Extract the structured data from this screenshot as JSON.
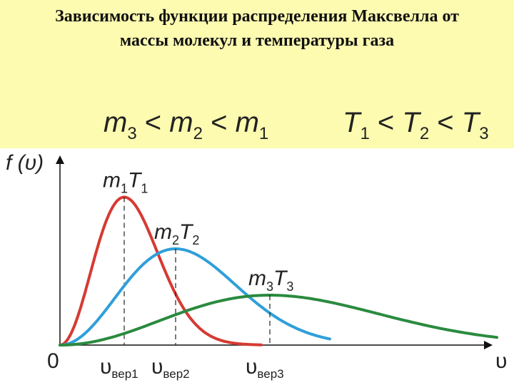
{
  "title_line1": "Зависимость функции распределения Максвелла от",
  "title_line2": "массы молекул и температуры газа",
  "mass_relation": {
    "a": "m",
    "a_sub": "3",
    "op1": " < ",
    "b": "m",
    "b_sub": "2",
    "op2": " < ",
    "c": "m",
    "c_sub": "1"
  },
  "temp_relation": {
    "a": "T",
    "a_sub": "1",
    "op1": " < ",
    "b": "T",
    "b_sub": "2",
    "op2": " < ",
    "c": "T",
    "c_sub": "3"
  },
  "colors": {
    "background_band": "#fdfbb0",
    "curve1": "#d63a32",
    "curve2": "#2f9fd9",
    "curve3": "#2a8a3e",
    "axes": "#111111"
  },
  "chart_data": {
    "type": "line",
    "ylabel": "f (υ)",
    "xlabel": "υ",
    "origin_label": "0",
    "grid": false,
    "xlim": [
      0,
      10
    ],
    "ylim": [
      0,
      1.0
    ],
    "series": [
      {
        "name": "m1T1",
        "label_main": "m",
        "label_sub1": "1",
        "label_mid": "T",
        "label_sub2": "1",
        "peak_x": 1.5,
        "peak_y": 0.83,
        "x_end": 4.7,
        "tick_label": "υ",
        "tick_sub": "вер1"
      },
      {
        "name": "m2T2",
        "label_main": "m",
        "label_sub1": "2",
        "label_mid": "T",
        "label_sub2": "2",
        "peak_x": 2.7,
        "peak_y": 0.54,
        "x_end": 6.3,
        "tick_label": "υ",
        "tick_sub": "вер2"
      },
      {
        "name": "m3T3",
        "label_main": "m",
        "label_sub1": "3",
        "label_mid": "T",
        "label_sub2": "3",
        "peak_x": 4.9,
        "peak_y": 0.28,
        "x_end": 10.2,
        "tick_label": "υ",
        "tick_sub": "вер3"
      }
    ]
  }
}
